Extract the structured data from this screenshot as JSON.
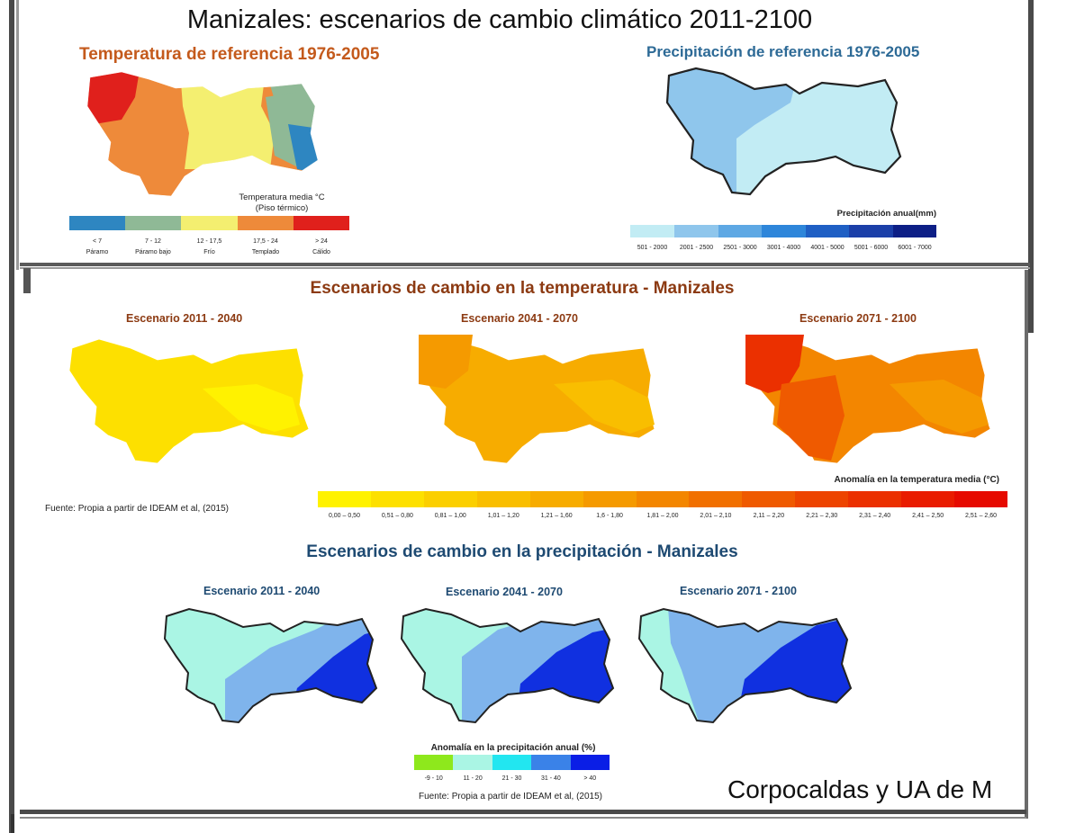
{
  "main_title": "Manizales: escenarios de cambio climático 2011-2100",
  "credit": "Corpocaldas y UA de M",
  "temp_ref": {
    "title": "Temperatura de referencia 1976-2005",
    "legend_title_1": "Temperatura media °C",
    "legend_title_2": "(Piso térmico)",
    "legend": [
      {
        "range": "< 7",
        "label": "Páramo",
        "color": "#2e86c1"
      },
      {
        "range": "7 - 12",
        "label": "Páramo bajo",
        "color": "#8fb996"
      },
      {
        "range": "12 - 17,5",
        "label": "Frío",
        "color": "#f4ef70"
      },
      {
        "range": "17,5 - 24",
        "label": "Templado",
        "color": "#ee8a3a"
      },
      {
        "range": "> 24",
        "label": "Cálido",
        "color": "#e0201c"
      }
    ]
  },
  "precip_ref": {
    "title": "Precipitación de referencia 1976-2005",
    "legend_title": "Precipitación anual(mm)",
    "legend": [
      {
        "range": "501 - 2000",
        "color": "#c2ecf4"
      },
      {
        "range": "2001 - 2500",
        "color": "#8fc6ec"
      },
      {
        "range": "2501 - 3000",
        "color": "#5ea8e4"
      },
      {
        "range": "3001 - 4000",
        "color": "#2e86da"
      },
      {
        "range": "4001 - 5000",
        "color": "#1f5fc4"
      },
      {
        "range": "5001 - 6000",
        "color": "#1b3fa8"
      },
      {
        "range": "6001 - 7000",
        "color": "#0d1f86"
      }
    ]
  },
  "temp_change": {
    "title": "Escenarios de cambio en la temperatura - Manizales",
    "scenarios": [
      "Escenario 2011 - 2040",
      "Escenario 2041 - 2070",
      "Escenario 2071 - 2100"
    ],
    "source": "Fuente: Propia a partir de IDEAM et al, (2015)",
    "legend_title": "Anomalía en la temperatura media (°C)",
    "legend": [
      {
        "range": "0,00 – 0,50",
        "color": "#fff200"
      },
      {
        "range": "0,51 – 0,80",
        "color": "#fde000"
      },
      {
        "range": "0,81 – 1,00",
        "color": "#fbcf00"
      },
      {
        "range": "1,01 – 1,20",
        "color": "#f9be00"
      },
      {
        "range": "1,21 – 1,60",
        "color": "#f7ac00"
      },
      {
        "range": "1,6 - 1,80",
        "color": "#f59a00"
      },
      {
        "range": "1,81 – 2,00",
        "color": "#f38600"
      },
      {
        "range": "2,01 – 2,10",
        "color": "#f17000"
      },
      {
        "range": "2,11 – 2,20",
        "color": "#ef5a00"
      },
      {
        "range": "2,21 – 2,30",
        "color": "#ed4400"
      },
      {
        "range": "2,31 – 2,40",
        "color": "#eb3000"
      },
      {
        "range": "2,41 – 2,50",
        "color": "#e91c00"
      },
      {
        "range": "2,51 – 2,60",
        "color": "#e60a00"
      }
    ]
  },
  "precip_change": {
    "title": "Escenarios de cambio en la precipitación - Manizales",
    "scenarios": [
      "Escenario 2011 - 2040",
      "Escenario 2041 - 2070",
      "Escenario 2071 - 2100"
    ],
    "legend_title": "Anomalía en la precipitación anual (%)",
    "legend": [
      {
        "range": "-9 - 10",
        "color": "#8ee81c"
      },
      {
        "range": "11 - 20",
        "color": "#aaf5e4"
      },
      {
        "range": "21 - 30",
        "color": "#22e6f0"
      },
      {
        "range": "31 - 40",
        "color": "#3a82e8"
      },
      {
        "range": "> 40",
        "color": "#0a1ee6"
      }
    ],
    "source": "Fuente: Propia a partir de IDEAM et al, (2015)"
  }
}
